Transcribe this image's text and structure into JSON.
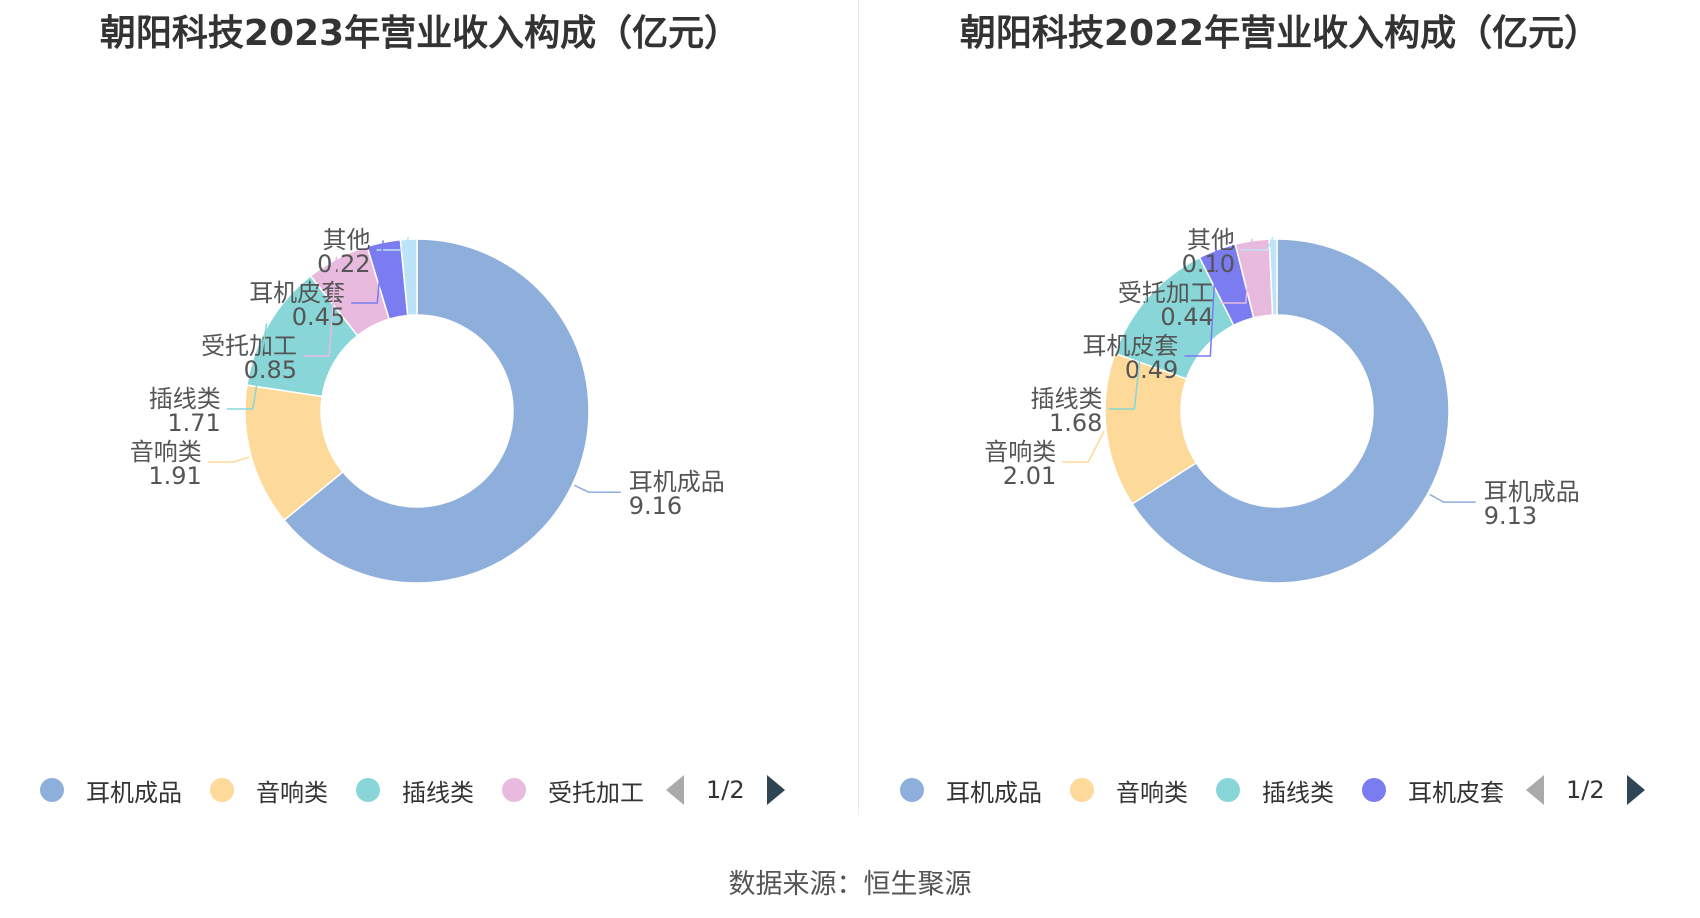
{
  "source_label": "数据来源：恒生聚源",
  "chart_data": [
    {
      "type": "pie",
      "variant": "donut",
      "title": "朝阳科技2023年营业收入构成（亿元）",
      "unit": "亿元",
      "slices": [
        {
          "name": "耳机成品",
          "value": 9.16,
          "label_value": "9.16",
          "color": "#8eaedb"
        },
        {
          "name": "音响类",
          "value": 1.91,
          "label_value": "1.91",
          "color": "#fdd99a"
        },
        {
          "name": "插线类",
          "value": 1.71,
          "label_value": "1.71",
          "color": "#88d6d8"
        },
        {
          "name": "受托加工",
          "value": 0.85,
          "label_value": "0.85",
          "color": "#e8bade"
        },
        {
          "name": "耳机皮套",
          "value": 0.45,
          "label_value": "0.45",
          "color": "#7a7cf0"
        },
        {
          "name": "其他",
          "value": 0.22,
          "label_value": "0.22",
          "color": "#bce3f7"
        }
      ],
      "legend": {
        "placement": "bottom",
        "visible_items": [
          "耳机成品",
          "音响类",
          "插线类",
          "受托加工"
        ],
        "page_indicator": "1/2"
      }
    },
    {
      "type": "pie",
      "variant": "donut",
      "title": "朝阳科技2022年营业收入构成（亿元）",
      "unit": "亿元",
      "slices": [
        {
          "name": "耳机成品",
          "value": 9.13,
          "label_value": "9.13",
          "color": "#8eaedb"
        },
        {
          "name": "音响类",
          "value": 2.01,
          "label_value": "2.01",
          "color": "#fdd99a"
        },
        {
          "name": "插线类",
          "value": 1.68,
          "label_value": "1.68",
          "color": "#88d6d8"
        },
        {
          "name": "耳机皮套",
          "value": 0.49,
          "label_value": "0.49",
          "color": "#7a7cf0"
        },
        {
          "name": "受托加工",
          "value": 0.44,
          "label_value": "0.44",
          "color": "#e8bade"
        },
        {
          "name": "其他",
          "value": 0.1,
          "label_value": "0.10",
          "color": "#bce3f7"
        }
      ],
      "legend": {
        "placement": "bottom",
        "visible_items": [
          "耳机成品",
          "音响类",
          "插线类",
          "耳机皮套"
        ],
        "page_indicator": "1/2"
      }
    }
  ]
}
